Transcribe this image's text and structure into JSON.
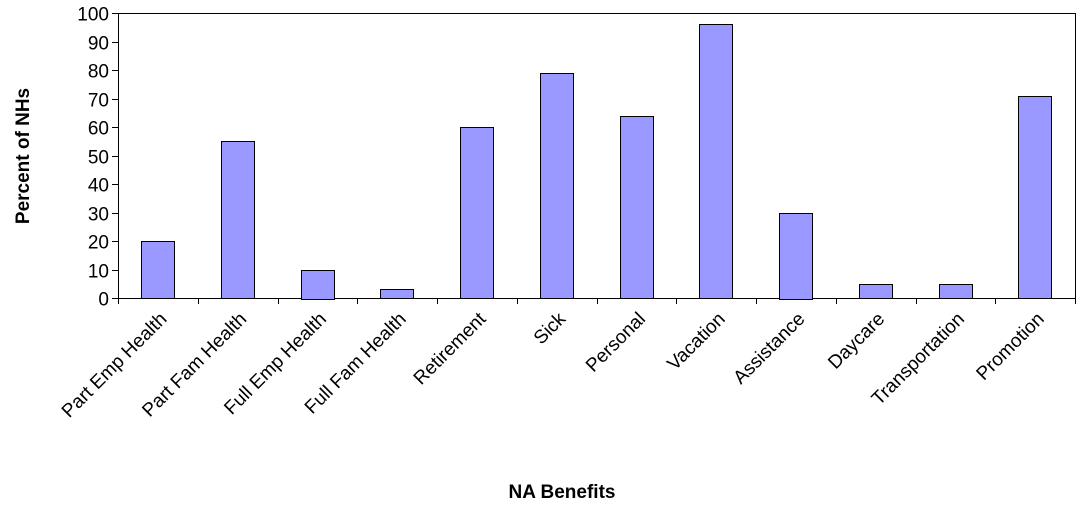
{
  "chart_data": {
    "type": "bar",
    "title": "",
    "xlabel": "NA Benefits",
    "ylabel": "Percent of NHs",
    "categories": [
      "Part Emp Health",
      "Part Fam Health",
      "Full Emp Health",
      "Full Fam Health",
      "Retirement",
      "Sick",
      "Personal",
      "Vacation",
      "Assistance",
      "Daycare",
      "Transportation",
      "Promotion"
    ],
    "values": [
      20,
      55,
      10,
      3,
      60,
      79,
      64,
      96,
      30,
      5,
      5,
      71
    ],
    "ylim": [
      0,
      100
    ],
    "yticks": [
      0,
      10,
      20,
      30,
      40,
      50,
      60,
      70,
      80,
      90,
      100
    ],
    "grid": false,
    "legend": "none",
    "colors": {
      "bar_fill": "#9999ff",
      "bar_stroke": "#000000",
      "axis": "#000000"
    }
  }
}
